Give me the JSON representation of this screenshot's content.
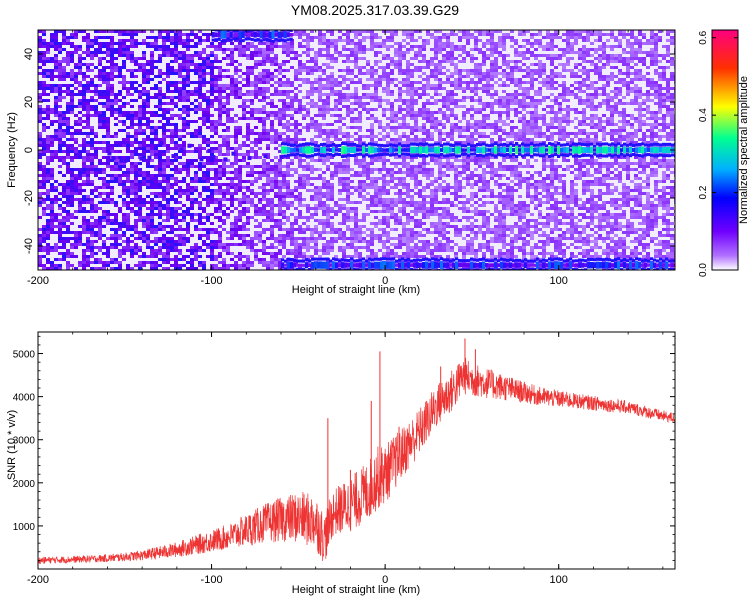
{
  "title": "YM08.2025.317.03.39.G29",
  "chart_data": [
    {
      "type": "heatmap",
      "xlabel": "Height of straight line (km)",
      "ylabel": "Frequency (Hz)",
      "xlim": [
        -200,
        167
      ],
      "ylim": [
        -50,
        50
      ],
      "x_ticks": [
        -200,
        -100,
        0,
        100
      ],
      "y_ticks": [
        -40,
        -20,
        0,
        20,
        40
      ],
      "colorbar": {
        "label": "Normalized spectral amplitude",
        "range": [
          0,
          0.62
        ],
        "ticks": [
          0.0,
          0.2,
          0.4,
          0.6
        ],
        "colors": [
          "#ffffff",
          "#8000ff",
          "#0000ff",
          "#00c0ff",
          "#00ff80",
          "#ffff00",
          "#ff0000",
          "#ff0080"
        ]
      },
      "features": [
        {
          "name": "carrier line",
          "frequency": 0,
          "x_start": -60,
          "x_end": 167,
          "amplitude": 0.3
        },
        {
          "name": "upper edge band",
          "frequency": 48,
          "x_start": -100,
          "x_end": -55,
          "amplitude": 0.2
        },
        {
          "name": "lower edge band",
          "frequency": -48,
          "x_start": -60,
          "x_end": 167,
          "amplitude": 0.2
        }
      ]
    },
    {
      "type": "line",
      "xlabel": "Height of straight line (km)",
      "ylabel": "SNR (10 * v/v)",
      "xlim": [
        -200,
        167
      ],
      "ylim": [
        0,
        5500
      ],
      "x_ticks": [
        -200,
        -100,
        0,
        100
      ],
      "y_ticks": [
        1000,
        2000,
        3000,
        4000,
        5000
      ],
      "color": "#ee3333",
      "series": [
        {
          "x": [
            -200,
            -180,
            -160,
            -150,
            -140,
            -130,
            -120,
            -110,
            -100,
            -90,
            -80,
            -70,
            -60,
            -50,
            -40,
            -35,
            -30,
            -20,
            -10,
            -5,
            0,
            10,
            20,
            30,
            40,
            45,
            50,
            60,
            70,
            80,
            90,
            100,
            110,
            120,
            130,
            140,
            150,
            160,
            167
          ],
          "y": [
            200,
            220,
            250,
            280,
            320,
            380,
            450,
            550,
            650,
            750,
            900,
            1050,
            1150,
            1200,
            1100,
            700,
            1300,
            1500,
            1800,
            2100,
            2200,
            2700,
            3200,
            3800,
            4200,
            4500,
            4400,
            4300,
            4200,
            4100,
            4000,
            3950,
            3900,
            3850,
            3800,
            3750,
            3650,
            3550,
            3500
          ],
          "spread": [
            80,
            80,
            90,
            100,
            120,
            150,
            180,
            220,
            260,
            300,
            380,
            450,
            520,
            600,
            650,
            600,
            550,
            650,
            700,
            750,
            700,
            600,
            550,
            500,
            500,
            450,
            400,
            350,
            300,
            250,
            220,
            200,
            180,
            170,
            160,
            150,
            140,
            130,
            120
          ]
        }
      ],
      "spikes": [
        {
          "x": -33,
          "y": 3500
        },
        {
          "x": -20,
          "y": 2300
        },
        {
          "x": -8,
          "y": 3900
        },
        {
          "x": -3,
          "y": 5050
        },
        {
          "x": 8,
          "y": 3300
        },
        {
          "x": 32,
          "y": 4700
        },
        {
          "x": 46,
          "y": 5350
        },
        {
          "x": 52,
          "y": 5100
        }
      ]
    }
  ]
}
